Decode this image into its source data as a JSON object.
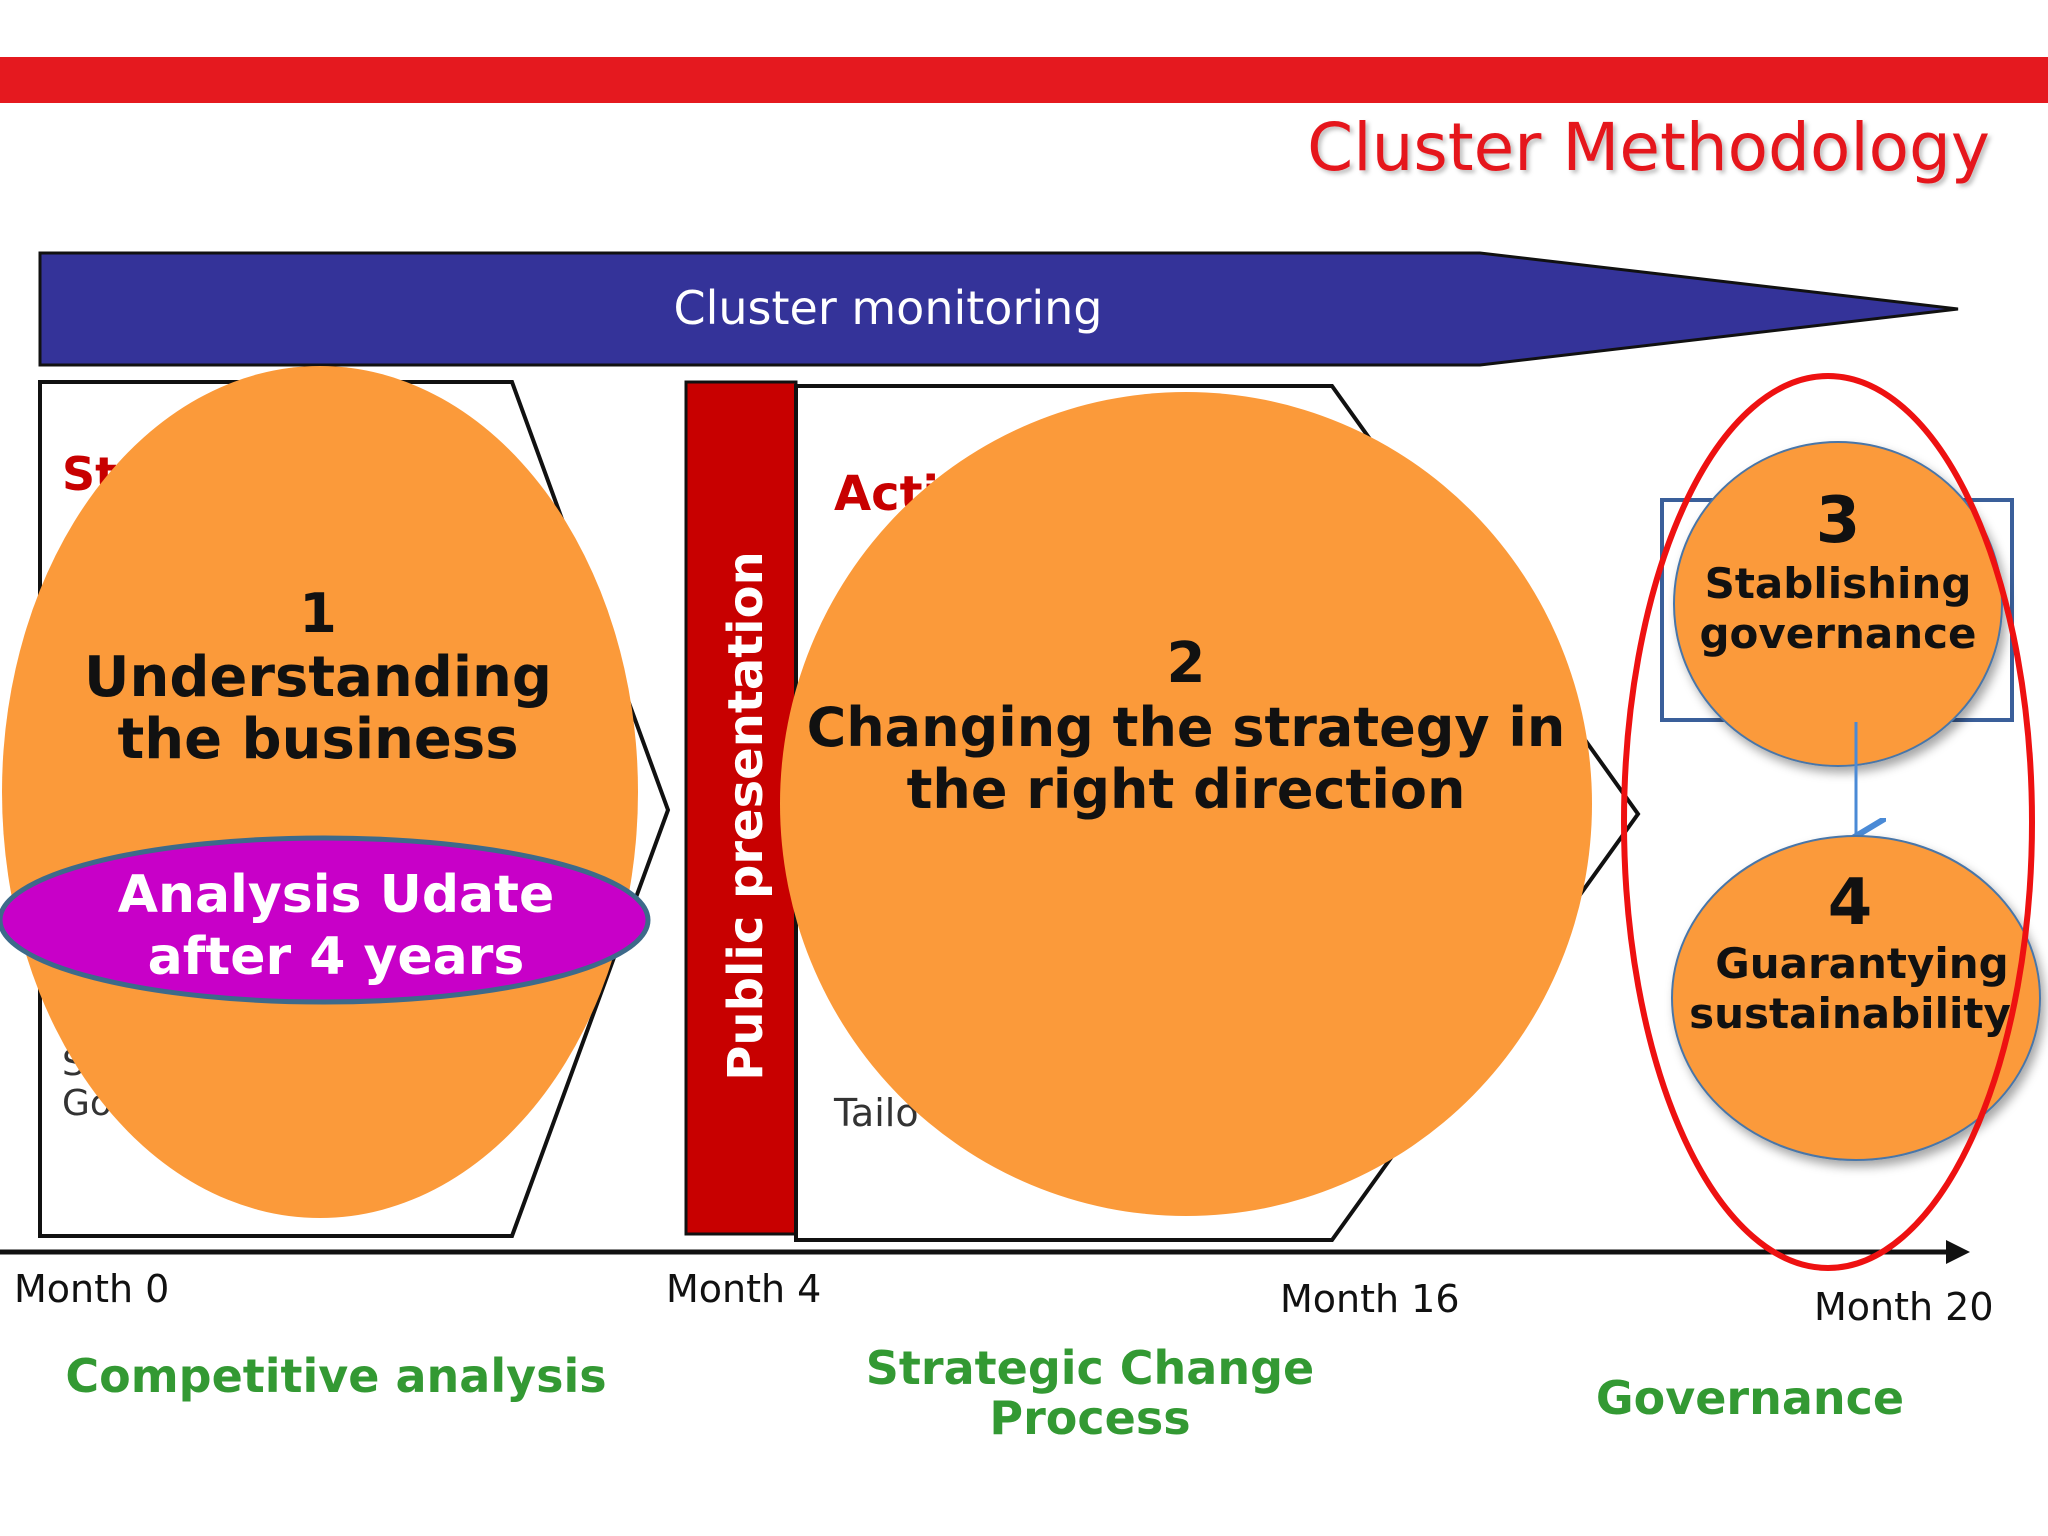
{
  "title": "Cluster Methodology",
  "monitoring_label": "Cluster monitoring",
  "colors": {
    "top_bar": "#e5191f",
    "title": "#e5191f",
    "monitoring_arrow": "#343399",
    "orange": "#fb9a3a",
    "magenta": "#c800c8",
    "dark_red": "#c80000",
    "green": "#339933",
    "highlight_ring": "#ee1111",
    "box_blue": "#3a5f9a"
  },
  "phase1": {
    "number": "1",
    "line1": "Understanding",
    "line2": "the business",
    "box_fragment_heading": "St",
    "box_fragment_line1": "S",
    "box_fragment_line2": "Go"
  },
  "analysis_update": {
    "line1": "Analysis Udate",
    "line2": "after 4 years"
  },
  "public_presentation": "Public presentation",
  "phase2": {
    "number": "2",
    "line1": "Changing the strategy in",
    "line2": "the right direction",
    "box_fragment_heading": "Acti",
    "box_fragment_line1": "Tailo"
  },
  "phase3": {
    "number": "3",
    "line1": "Stablishing",
    "line2": "governance"
  },
  "phase4": {
    "number": "4",
    "line1": "Guarantying",
    "line2": "sustainability"
  },
  "timeline": {
    "month0": "Month 0",
    "month4": "Month 4",
    "month16": "Month 16",
    "month20": "Month 20"
  },
  "stages": {
    "competitive": "Competitive analysis",
    "strategic_line1": "Strategic Change",
    "strategic_line2": "Process",
    "governance": "Governance"
  },
  "icons": {
    "down_arrow": "down-arrow-icon"
  }
}
